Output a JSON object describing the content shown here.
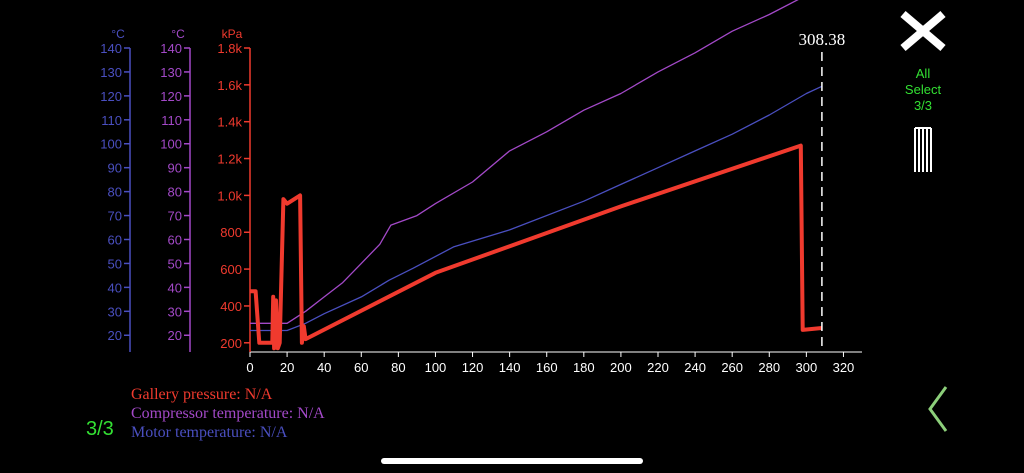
{
  "colors": {
    "pressure": "#f03a2e",
    "compressor": "#a349c8",
    "motor": "#4a4fc0",
    "accent": "#33e033"
  },
  "cursor": {
    "x": 308.38,
    "label": "308.38"
  },
  "header": {
    "close_icon": "close-icon",
    "all_select_line1": "All",
    "all_select_line2": "Select",
    "all_select_count": "3/3"
  },
  "footer": {
    "page_indicator": "3/3",
    "back_icon": "chevron-left-icon"
  },
  "legend": {
    "pressure": "Gallery pressure: N/A",
    "compressor": "Compressor temperature: N/A",
    "motor": "Motor temperature: N/A"
  },
  "chart_data": {
    "type": "line",
    "x_axis": {
      "min": 0,
      "max": 330,
      "ticks": [
        0,
        20,
        40,
        60,
        80,
        100,
        120,
        140,
        160,
        180,
        200,
        220,
        240,
        260,
        280,
        300,
        320
      ]
    },
    "y_axes": [
      {
        "id": "motor",
        "unit": "°C",
        "min": 13,
        "max": 140,
        "ticks": [
          20,
          30,
          40,
          50,
          60,
          70,
          80,
          90,
          100,
          110,
          120,
          130,
          140
        ]
      },
      {
        "id": "compressor",
        "unit": "°C",
        "min": 13,
        "max": 140,
        "ticks": [
          20,
          30,
          40,
          50,
          60,
          70,
          80,
          90,
          100,
          110,
          120,
          130,
          140
        ]
      },
      {
        "id": "pressure",
        "unit": "kPa",
        "min": 150,
        "max": 1800,
        "ticks": [
          200,
          400,
          600,
          800,
          1000,
          1200,
          1400,
          1600,
          1800
        ],
        "tick_labels": [
          "200",
          "400",
          "600",
          "800",
          "1.0k",
          "1.2k",
          "1.4k",
          "1.6k",
          "1.8k"
        ]
      }
    ],
    "series": [
      {
        "name": "Gallery pressure",
        "axis": "pressure",
        "points": [
          [
            0,
            480
          ],
          [
            3,
            480
          ],
          [
            5,
            200
          ],
          [
            12,
            200
          ],
          [
            12.5,
            450
          ],
          [
            13,
            170
          ],
          [
            14,
            430
          ],
          [
            15,
            170
          ],
          [
            16,
            200
          ],
          [
            18,
            980
          ],
          [
            20,
            955
          ],
          [
            27,
            1000
          ],
          [
            28,
            200
          ],
          [
            29,
            290
          ],
          [
            30,
            220
          ],
          [
            100,
            580
          ],
          [
            200,
            940
          ],
          [
            297,
            1270
          ],
          [
            298,
            270
          ],
          [
            308.4,
            280
          ]
        ]
      },
      {
        "name": "Compressor temperature",
        "axis": "compressor",
        "points": [
          [
            0,
            25
          ],
          [
            20,
            25
          ],
          [
            30,
            30
          ],
          [
            40,
            36
          ],
          [
            50,
            42
          ],
          [
            60,
            50
          ],
          [
            70,
            58
          ],
          [
            76,
            66
          ],
          [
            90,
            70
          ],
          [
            100,
            75
          ],
          [
            120,
            84
          ],
          [
            140,
            97
          ],
          [
            160,
            105
          ],
          [
            180,
            114
          ],
          [
            200,
            121
          ],
          [
            220,
            130
          ],
          [
            240,
            138
          ],
          [
            260,
            147
          ],
          [
            280,
            154
          ],
          [
            300,
            162
          ],
          [
            304,
            162
          ],
          [
            308.4,
            161
          ]
        ]
      },
      {
        "name": "Motor temperature",
        "axis": "motor",
        "points": [
          [
            0,
            22
          ],
          [
            20,
            22
          ],
          [
            30,
            25
          ],
          [
            40,
            29
          ],
          [
            60,
            36
          ],
          [
            75,
            43
          ],
          [
            88,
            48
          ],
          [
            110,
            57
          ],
          [
            140,
            64
          ],
          [
            180,
            76
          ],
          [
            200,
            83
          ],
          [
            220,
            90
          ],
          [
            240,
            97
          ],
          [
            260,
            104
          ],
          [
            280,
            112
          ],
          [
            300,
            121
          ],
          [
            308.4,
            124
          ]
        ]
      }
    ]
  }
}
